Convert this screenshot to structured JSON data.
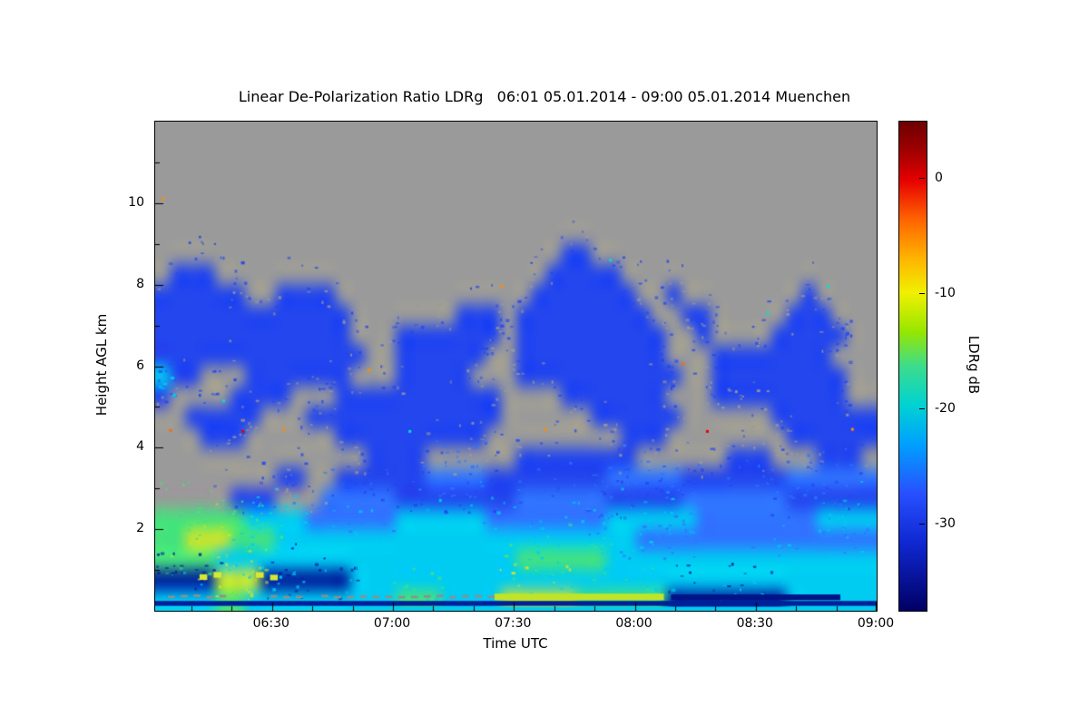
{
  "chart_data": {
    "type": "heatmap",
    "title": "Linear De-Polarization Ratio LDRg   06:01 05.01.2014 - 09:00 05.01.2014 Muenchen",
    "instrument_quantity": "Linear De-Polarization Ratio LDRg",
    "time_start": "06:01 05.01.2014",
    "time_end": "09:00 05.01.2014",
    "station": "Muenchen",
    "xlabel": "Time UTC",
    "ylabel": "Height AGL km",
    "x_range_hours": [
      6.0167,
      9.0
    ],
    "x_ticks": [
      {
        "t": 6.5,
        "label": "06:30"
      },
      {
        "t": 7.0,
        "label": "07:00"
      },
      {
        "t": 7.5,
        "label": "07:30"
      },
      {
        "t": 8.0,
        "label": "08:00"
      },
      {
        "t": 8.5,
        "label": "08:30"
      },
      {
        "t": 9.0,
        "label": "09:00"
      }
    ],
    "y_range_km": [
      0,
      12
    ],
    "y_ticks": [
      {
        "v": 2,
        "label": "2"
      },
      {
        "v": 4,
        "label": "4"
      },
      {
        "v": 6,
        "label": "6"
      },
      {
        "v": 8,
        "label": "8"
      },
      {
        "v": 10,
        "label": "10"
      }
    ],
    "colorbar": {
      "label": "LDRg dB",
      "ticks": [
        0,
        -10,
        -20,
        -30
      ],
      "vmax": 5,
      "vmin": -37.5,
      "stops": [
        [
          0.0,
          "#6e0000"
        ],
        [
          0.06,
          "#a00000"
        ],
        [
          0.12,
          "#e60000"
        ],
        [
          0.2,
          "#ff6400"
        ],
        [
          0.28,
          "#ffb400"
        ],
        [
          0.35,
          "#f0f000"
        ],
        [
          0.43,
          "#96e600"
        ],
        [
          0.5,
          "#3cdc8c"
        ],
        [
          0.58,
          "#00d2d2"
        ],
        [
          0.66,
          "#00a0ff"
        ],
        [
          0.76,
          "#2850ff"
        ],
        [
          0.86,
          "#0f28d2"
        ],
        [
          1.0,
          "#000064"
        ]
      ]
    },
    "palette": {
      ".": "#9a9a9a",
      "b": "#2346ee",
      "l": "#2f74ff",
      "c": "#00ccf2",
      "g": "#46e27c",
      "y": "#cfe42a",
      "d": "#001b9c"
    },
    "palette_values_db": {
      ".": null,
      "b": -30,
      "l": -27,
      "c": -21,
      "g": -16,
      "y": -11,
      "d": -34
    },
    "grid_note": "Coarse 48x24 field read off the plot. Columns = time 06:01-09:00 UTC, rows top-to-bottom = height 12 km down to 0 km (0.5 km per row). '.'=no signal (gray), codes map to LDRg dB via palette_values_db.",
    "grid_rows": [
      "................................................",
      "................................................",
      "................................................",
      "................................................",
      "................................................",
      "................................................",
      "...........................bb...................",
      ".bbb......................bbbbb.................",
      "bbbbbb..bbbb.............bbbbbbb..b........b....",
      "bbbbbbbbbbbbb.......bbb.bbbbbbbbb..bb.....bbb...",
      "bbbbbbbbbbbbb...bbbbbbb.bbbbbbbbbb..b....bbbbb..",
      "bbbbbbbbbbbbbb..bbbbbb..bbbbbbbbbb...bbbbbbbb...",
      "cbb...bbbbbbb...bbbbb...bbbbbbbbbbb..bbbbbbbbb..",
      "b....bbbb...bbbbbbbbbbb....bbbbbbb...bbbbbbbbb..",
      "..bbbbb...bbbbbbbbbbbbb......bbbbbb......bbbbbbb",
      "...bbb......bbbbbbbbbb.........bbb........bbbbbb",
      "..............bbbb......bbbbbbbb......bbb...bbb.",
      "........bb..bbbbbbllllbbbbbbbblllllbbbbbbbllllll",
      ".....bbb...lllllbbbbbbbbllllllbbbbblllllllbbbbbb",
      "ggggggccccllllllccccccllllllllccccccllllllllcccc",
      "ggyyygggccccccccccccccccccccccccllllllllllllllll",
      "ggggccccccccccccccccccccggggggcccccccccccccccccc",
      "ddddyyyddddddccccccccccccccccccccccccccccccccccc",
      "ccccggccccccccccgggccccyyyyyggggggddddddddcccccc"
    ],
    "speckles": [
      {
        "t": 6.05,
        "h": 10.1,
        "color": "#ff8c00"
      },
      {
        "t": 6.08,
        "h": 4.42,
        "color": "#ff6a00"
      },
      {
        "t": 6.3,
        "h": 5.15,
        "color": "#00e0d0"
      },
      {
        "t": 6.38,
        "h": 4.4,
        "color": "#e80000"
      },
      {
        "t": 6.55,
        "h": 4.45,
        "color": "#ff8c00"
      },
      {
        "t": 6.9,
        "h": 5.9,
        "color": "#ff8c00"
      },
      {
        "t": 7.07,
        "h": 4.4,
        "color": "#00e0d0"
      },
      {
        "t": 7.45,
        "h": 7.95,
        "color": "#ff8c00"
      },
      {
        "t": 7.63,
        "h": 4.45,
        "color": "#ff8c00"
      },
      {
        "t": 7.9,
        "h": 8.6,
        "color": "#00e0d0"
      },
      {
        "t": 8.2,
        "h": 6.05,
        "color": "#ff6a00"
      },
      {
        "t": 8.3,
        "h": 4.4,
        "color": "#e80000"
      },
      {
        "t": 8.55,
        "h": 7.3,
        "color": "#00e0d0"
      },
      {
        "t": 8.8,
        "h": 7.95,
        "color": "#00e0d0"
      },
      {
        "t": 8.9,
        "h": 4.45,
        "color": "#ff8c00"
      }
    ],
    "overlay_bands": [
      {
        "t0": 6.0167,
        "t1": 9.0,
        "h0": 0.12,
        "h1": 0.24,
        "color": "#00209a",
        "style": "solid"
      },
      {
        "t0": 6.0167,
        "t1": 7.55,
        "h0": 0.3,
        "h1": 0.4,
        "color": "#8f8f8f",
        "style": "dashed"
      },
      {
        "t0": 7.42,
        "t1": 8.12,
        "h0": 0.26,
        "h1": 0.42,
        "color": "#c0e428",
        "style": "solid"
      },
      {
        "t0": 8.15,
        "t1": 8.85,
        "h0": 0.26,
        "h1": 0.4,
        "color": "#001486",
        "style": "solid"
      },
      {
        "t0": 6.9,
        "t1": 9.0,
        "h0": 0.0,
        "h1": 0.1,
        "color": "#00ccf2",
        "style": "solid"
      },
      {
        "t0": 6.2,
        "t1": 6.55,
        "h0": 0.72,
        "h1": 0.95,
        "color": "#d8e830",
        "style": "dashed"
      }
    ]
  }
}
